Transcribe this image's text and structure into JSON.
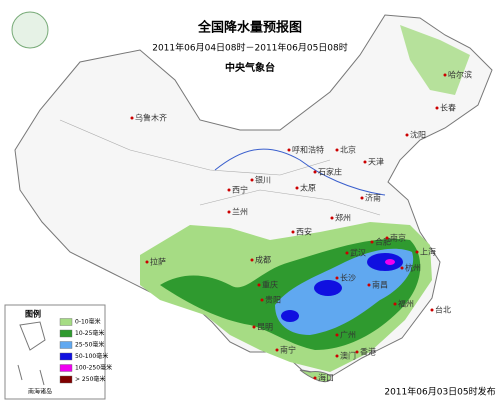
{
  "header": {
    "title": "全国降水量预报图",
    "period": "2011年06月04日08时－2011年06月05日08时",
    "agency": "中央气象台"
  },
  "footer": {
    "issued": "2011年06月03日05时发布"
  },
  "legend": {
    "title": "图例",
    "inset_label": "南海诸岛",
    "entries": [
      {
        "label": "0-10毫米",
        "color": "#a6dc84"
      },
      {
        "label": "10-25毫米",
        "color": "#2f9a2f"
      },
      {
        "label": "25-50毫米",
        "color": "#60a8f0"
      },
      {
        "label": "50-100毫米",
        "color": "#1010e0"
      },
      {
        "label": "100-250毫米",
        "color": "#f000f0"
      },
      {
        "label": "> 250毫米",
        "color": "#800000"
      }
    ]
  },
  "cities": [
    "乌鲁木齐",
    "哈尔滨",
    "长春",
    "沈阳",
    "呼和浩特",
    "北京",
    "天津",
    "石家庄",
    "太原",
    "银川",
    "西宁",
    "兰州",
    "济南",
    "郑州",
    "西安",
    "合肥",
    "南京",
    "上海",
    "杭州",
    "武汉",
    "长沙",
    "南昌",
    "福州",
    "成都",
    "重庆",
    "贵阳",
    "昆明",
    "南宁",
    "广州",
    "香港",
    "澳门",
    "海口",
    "台北",
    "拉萨"
  ]
}
